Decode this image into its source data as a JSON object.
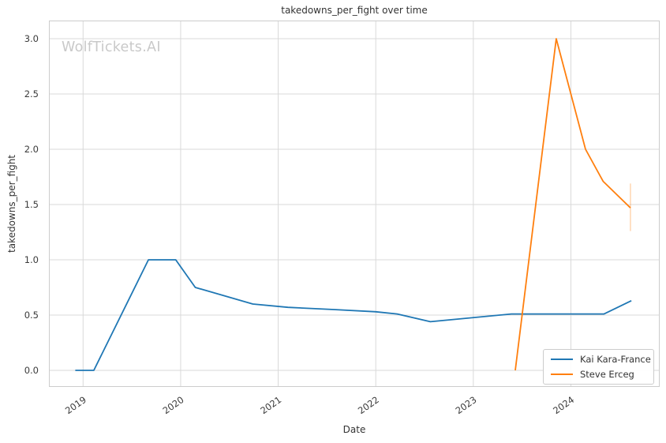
{
  "chart_data": {
    "type": "line",
    "title": "takedowns_per_fight over time",
    "xlabel": "Date",
    "ylabel": "takedowns_per_fight",
    "watermark": "WolfTickets.AI",
    "x_ticks": [
      2019,
      2020,
      2021,
      2022,
      2023,
      2024
    ],
    "x_tick_labels": [
      "2019",
      "2020",
      "2021",
      "2022",
      "2023",
      "2024"
    ],
    "y_ticks": [
      0.0,
      0.5,
      1.0,
      1.5,
      2.0,
      2.5,
      3.0
    ],
    "y_tick_labels": [
      "0.0",
      "0.5",
      "1.0",
      "1.5",
      "2.0",
      "2.5",
      "3.0"
    ],
    "xlim": [
      2018.65,
      2024.91
    ],
    "ylim": [
      -0.15,
      3.164
    ],
    "grid": true,
    "legend_position": "lower right",
    "series": [
      {
        "name": "Kai Kara-France",
        "color": "#1f77b4",
        "points": [
          [
            2018.92,
            0.0
          ],
          [
            2019.11,
            0.0
          ],
          [
            2019.67,
            1.0
          ],
          [
            2019.95,
            1.0
          ],
          [
            2020.15,
            0.75
          ],
          [
            2020.74,
            0.6
          ],
          [
            2021.1,
            0.57
          ],
          [
            2021.57,
            0.55
          ],
          [
            2022.0,
            0.53
          ],
          [
            2022.22,
            0.51
          ],
          [
            2022.56,
            0.44
          ],
          [
            2023.39,
            0.51
          ],
          [
            2024.34,
            0.51
          ],
          [
            2024.62,
            0.63
          ]
        ]
      },
      {
        "name": "Steve Erceg",
        "color": "#ff7f0e",
        "points": [
          [
            2023.43,
            0.0
          ],
          [
            2023.85,
            3.0
          ],
          [
            2024.15,
            2.0
          ],
          [
            2024.33,
            1.71
          ],
          [
            2024.61,
            1.47
          ]
        ],
        "error_bar": {
          "x": 2024.61,
          "low": 1.26,
          "high": 1.69
        }
      }
    ],
    "colors": {
      "background": "#ffffff",
      "grid": "#d9d9d9",
      "axis_border": "#cccccc",
      "tick_text": "#3a3a3a",
      "watermark": "#c9c9c9"
    }
  }
}
